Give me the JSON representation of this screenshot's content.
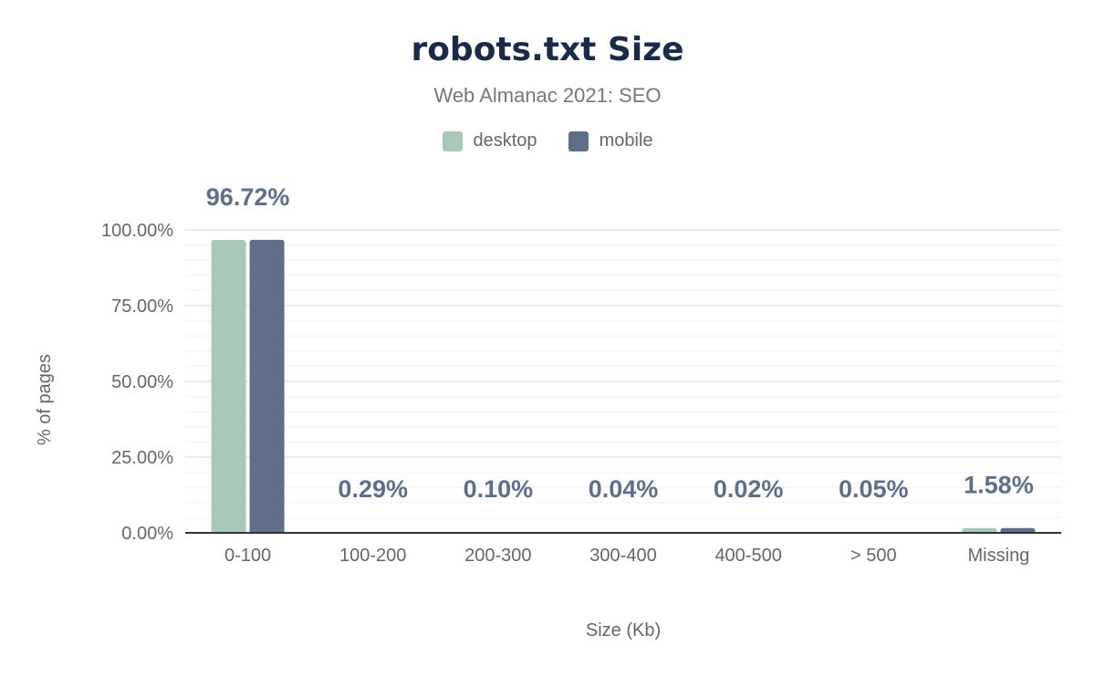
{
  "chart_data": {
    "type": "bar",
    "title": "robots.txt Size",
    "subtitle": "Web Almanac 2021: SEO",
    "xlabel": "Size (Kb)",
    "ylabel": "% of pages",
    "ylim": [
      0,
      100
    ],
    "yticks": [
      "0.00%",
      "25.00%",
      "50.00%",
      "75.00%",
      "100.00%"
    ],
    "grid": true,
    "legend_position": "top",
    "categories": [
      "0-100",
      "100-200",
      "200-300",
      "300-400",
      "400-500",
      "> 500",
      "Missing"
    ],
    "series": [
      {
        "name": "desktop",
        "color": "#a8c9b8",
        "values": [
          96.7,
          0.3,
          0.1,
          0.04,
          0.02,
          0.05,
          1.6
        ]
      },
      {
        "name": "mobile",
        "color": "#5f6f8a",
        "values": [
          96.72,
          0.29,
          0.1,
          0.04,
          0.02,
          0.05,
          1.58
        ]
      }
    ],
    "data_labels": [
      "96.72%",
      "0.29%",
      "0.10%",
      "0.04%",
      "0.02%",
      "0.05%",
      "1.58%"
    ]
  }
}
